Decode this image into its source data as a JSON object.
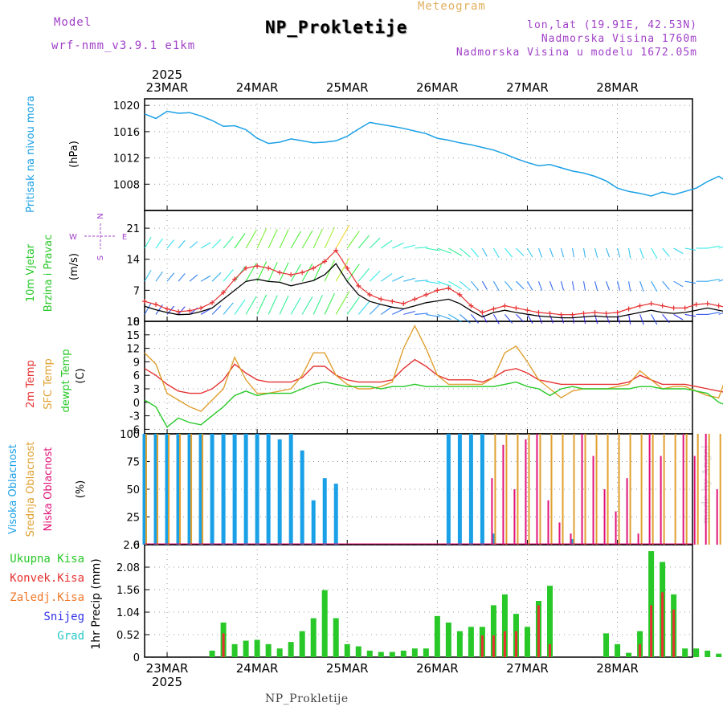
{
  "header": {
    "model_label": "Model",
    "model_name": "wrf-nmm_v3.9.1 e1km",
    "chart_type_label": "Meteogram",
    "station": "NP_Prokletije",
    "lonlat": "lon,lat (19.91E, 42.53N)",
    "altitude": "Nadmorska Visina 1760m",
    "model_altitude": "Nadmorska Visina u modelu 1672.05m",
    "footer_station": "NP_Prokletije",
    "credit": "made by Angel"
  },
  "colors": {
    "pressure": "#1aa0e6",
    "speed": "#000000",
    "gust": "#e63232",
    "t2m": "#e63232",
    "tsfc": "#e0a030",
    "dewpt": "#28c828",
    "high_cloud": "#1aa0e6",
    "mid_cloud": "#e0a030",
    "low_cloud": "#e0147a",
    "total_rain": "#28c828",
    "conv_rain": "#e63232",
    "frozen": "#f07828",
    "snow": "#3232e6",
    "hail": "#28c8c8",
    "purple": "#a040c8"
  },
  "chart_data": [
    {
      "type": "line",
      "panel": "pressure",
      "ylabel_lines": [
        "Pritisak na nivou mora",
        "(hPa)"
      ],
      "ylim": [
        1004,
        1021
      ],
      "yticks": [
        1008,
        1012,
        1016,
        1020
      ],
      "x_hours_start": 0,
      "step_hours": 3,
      "values": [
        1018.7,
        1018.0,
        1019.1,
        1018.8,
        1018.9,
        1018.4,
        1017.7,
        1016.8,
        1016.9,
        1016.3,
        1015.0,
        1014.2,
        1014.4,
        1014.9,
        1014.6,
        1014.3,
        1014.4,
        1014.6,
        1015.3,
        1016.4,
        1017.4,
        1017.1,
        1016.8,
        1016.5,
        1016.1,
        1015.7,
        1015.0,
        1014.7,
        1014.3,
        1014.0,
        1013.6,
        1013.2,
        1012.6,
        1011.9,
        1011.3,
        1010.8,
        1011.0,
        1010.5,
        1010.0,
        1009.7,
        1009.2,
        1008.5,
        1007.4,
        1006.9,
        1006.6,
        1006.2,
        1006.8,
        1006.4,
        1006.9,
        1007.4,
        1008.4,
        1009.2,
        1008.1
      ],
      "grid": true
    },
    {
      "type": "line",
      "panel": "wind",
      "ylabel_lines": [
        "10m Vjetar",
        "Brzina i Pravac",
        "(m/s)"
      ],
      "compass": {
        "n": "N",
        "s": "S",
        "e": "E",
        "w": "W"
      },
      "ylim": [
        0,
        25
      ],
      "yticks": [
        0,
        7,
        14,
        21
      ],
      "x_hours_start": 0,
      "step_hours": 3,
      "series": [
        {
          "name": "speed",
          "values": [
            3.4,
            2.6,
            2.0,
            1.5,
            1.6,
            2.2,
            3.0,
            5.0,
            7.0,
            9.0,
            9.5,
            9.0,
            8.8,
            8.0,
            8.6,
            9.2,
            10.5,
            13.0,
            9.0,
            6.0,
            4.5,
            3.8,
            3.2,
            2.8,
            3.5,
            4.2,
            4.6,
            5.0,
            4.0,
            2.4,
            1.0,
            2.0,
            2.5,
            2.0,
            1.6,
            1.2,
            1.0,
            0.8,
            0.8,
            1.0,
            1.2,
            1.0,
            1.0,
            1.5,
            2.0,
            2.5,
            2.0,
            1.8,
            2.0,
            2.5,
            3.0,
            2.5,
            2.0
          ]
        },
        {
          "name": "gust",
          "values": [
            4.5,
            3.8,
            2.8,
            2.2,
            2.4,
            3.0,
            4.2,
            6.5,
            9.5,
            12.0,
            12.5,
            12.0,
            11.0,
            10.5,
            11.0,
            12.0,
            13.5,
            16.0,
            12.0,
            8.0,
            6.0,
            5.0,
            4.5,
            4.0,
            5.0,
            6.0,
            7.0,
            7.5,
            6.0,
            3.5,
            2.0,
            2.8,
            3.5,
            3.0,
            2.5,
            2.0,
            1.8,
            1.5,
            1.5,
            1.8,
            2.0,
            1.8,
            2.0,
            2.8,
            3.5,
            4.0,
            3.5,
            3.0,
            3.0,
            3.8,
            4.0,
            3.5,
            3.0
          ]
        }
      ],
      "direction_deg": [
        210,
        215,
        220,
        220,
        230,
        240,
        225,
        220,
        215,
        210,
        205,
        205,
        205,
        210,
        210,
        205,
        205,
        210,
        215,
        220,
        225,
        235,
        245,
        255,
        265,
        280,
        290,
        300,
        310,
        320,
        330,
        330,
        320,
        315,
        330,
        340,
        340,
        345,
        350,
        350,
        345,
        340,
        345,
        350,
        340,
        330,
        320,
        300,
        280,
        270,
        260,
        250,
        240
      ],
      "grid": true
    },
    {
      "type": "line",
      "panel": "temperature",
      "ylabel_lines": [
        "2m Temp",
        "SFC Temp",
        "dewpt Temp",
        "(C)"
      ],
      "ylim": [
        -7,
        18
      ],
      "yticks": [
        -6,
        -3,
        0,
        3,
        6,
        9,
        12,
        15,
        18
      ],
      "x_hours_start": 0,
      "step_hours": 3,
      "series": [
        {
          "name": "2m Temp",
          "values": [
            7.5,
            6.0,
            4.0,
            2.5,
            2.0,
            2.0,
            3.0,
            5.0,
            8.5,
            6.5,
            5.0,
            4.5,
            4.5,
            4.5,
            5.5,
            8.0,
            8.0,
            6.0,
            5.0,
            4.5,
            4.5,
            4.5,
            5.0,
            7.5,
            9.5,
            8.0,
            6.0,
            5.0,
            5.0,
            5.0,
            4.5,
            5.5,
            7.0,
            7.5,
            6.5,
            5.0,
            4.5,
            4.0,
            4.0,
            4.0,
            4.0,
            4.0,
            4.0,
            4.5,
            6.0,
            5.0,
            4.0,
            4.0,
            4.0,
            3.5,
            3.0,
            2.5,
            2.0
          ]
        },
        {
          "name": "SFC Temp",
          "values": [
            11.0,
            8.5,
            2.0,
            0.5,
            -1.0,
            -2.0,
            0.5,
            3.0,
            10.0,
            5.0,
            2.0,
            2.0,
            2.5,
            3.0,
            6.0,
            11.0,
            11.0,
            6.0,
            4.0,
            3.0,
            3.0,
            3.5,
            4.5,
            12.0,
            17.0,
            12.0,
            6.0,
            4.0,
            4.0,
            4.0,
            4.0,
            5.5,
            11.0,
            12.5,
            9.0,
            5.0,
            3.0,
            1.0,
            2.5,
            3.0,
            3.0,
            3.0,
            3.5,
            4.0,
            7.0,
            5.0,
            3.0,
            3.5,
            3.5,
            2.5,
            1.5,
            1.0,
            8.0
          ]
        },
        {
          "name": "dewpt Temp",
          "values": [
            0.5,
            -1.0,
            -5.5,
            -3.5,
            -4.5,
            -5.0,
            -3.0,
            -1.0,
            1.5,
            2.5,
            1.5,
            2.0,
            2.0,
            2.0,
            3.0,
            4.0,
            4.5,
            4.0,
            3.5,
            3.5,
            3.5,
            3.0,
            3.5,
            3.5,
            4.0,
            3.5,
            3.5,
            3.5,
            3.5,
            3.5,
            3.5,
            3.5,
            4.0,
            4.5,
            3.5,
            3.0,
            1.5,
            3.0,
            3.5,
            3.0,
            3.0,
            3.0,
            3.0,
            3.0,
            3.5,
            3.5,
            3.0,
            3.0,
            3.0,
            2.5,
            2.0,
            0.0,
            -1.0
          ]
        }
      ],
      "grid": true
    },
    {
      "type": "bar",
      "panel": "cloud",
      "ylabel_lines": [
        "Visoka Oblacnost",
        "Srednja Oblacnost",
        "Niska Oblacnost",
        "(%)"
      ],
      "ylim": [
        0,
        100
      ],
      "yticks": [
        0,
        25,
        50,
        75,
        100
      ],
      "x_hours_start": 0,
      "step_hours": 3,
      "series": [
        {
          "name": "Visoka Oblacnost",
          "values": [
            100,
            100,
            100,
            100,
            100,
            100,
            100,
            100,
            100,
            100,
            100,
            100,
            95,
            100,
            85,
            40,
            60,
            55,
            0,
            0,
            0,
            0,
            0,
            0,
            0,
            0,
            0,
            100,
            100,
            100,
            100,
            10,
            0,
            0,
            0,
            0,
            0,
            0,
            5,
            0,
            0,
            0,
            0,
            0,
            0,
            0,
            0,
            0,
            0,
            0,
            0,
            0,
            0
          ]
        },
        {
          "name": "Srednja Oblacnost",
          "values": [
            100,
            100,
            100,
            100,
            100,
            100,
            0,
            0,
            0,
            0,
            0,
            0,
            0,
            0,
            0,
            0,
            0,
            0,
            0,
            0,
            0,
            0,
            0,
            0,
            0,
            0,
            0,
            0,
            0,
            0,
            0,
            100,
            100,
            100,
            100,
            100,
            100,
            100,
            100,
            100,
            100,
            100,
            100,
            100,
            100,
            100,
            100,
            100,
            100,
            100,
            100,
            100,
            100
          ]
        },
        {
          "name": "Niska Oblacnost",
          "values": [
            0,
            0,
            0,
            0,
            0,
            0,
            0,
            0,
            0,
            0,
            0,
            0,
            0,
            0,
            0,
            0,
            0,
            0,
            0,
            0,
            0,
            0,
            0,
            0,
            0,
            0,
            0,
            0,
            0,
            0,
            0,
            60,
            90,
            50,
            95,
            100,
            40,
            20,
            10,
            100,
            80,
            50,
            30,
            60,
            10,
            100,
            80,
            0,
            100,
            80,
            100,
            50,
            30
          ]
        }
      ],
      "grid": true
    },
    {
      "type": "bar",
      "panel": "precip",
      "ylabel_lines": [
        "1hr Precip (mm)"
      ],
      "legend": [
        "Ukupna Kisa",
        "Konvek.Kisa",
        "Zaledj.Kisa",
        "Snijeg",
        "Grad"
      ],
      "ylim": [
        0,
        2.6
      ],
      "yticks": [
        0,
        0.52,
        1.04,
        1.56,
        2.08,
        2.6
      ],
      "x_hours_start": 0,
      "step_hours": 3,
      "series": [
        {
          "name": "Ukupna Kisa",
          "values": [
            0,
            0,
            0,
            0,
            0,
            0,
            0.15,
            0.8,
            0.3,
            0.38,
            0.4,
            0.3,
            0.2,
            0.35,
            0.6,
            0.9,
            1.55,
            0.9,
            0.3,
            0.25,
            0.15,
            0.12,
            0.12,
            0.15,
            0.2,
            0.2,
            0.95,
            0.8,
            0.6,
            0.7,
            0.7,
            1.2,
            1.45,
            1.0,
            0.7,
            1.3,
            1.65,
            0,
            0,
            0,
            0,
            0.55,
            0.3,
            0.1,
            0.6,
            2.45,
            2.2,
            1.45,
            0.2,
            0.2,
            0.15,
            0.08,
            0.05
          ]
        },
        {
          "name": "Konvek.Kisa",
          "values": [
            0,
            0,
            0,
            0,
            0,
            0,
            0,
            0.55,
            0,
            0,
            0,
            0,
            0,
            0,
            0,
            0,
            0,
            0,
            0,
            0,
            0,
            0,
            0,
            0,
            0,
            0,
            0,
            0,
            0,
            0,
            0.5,
            0.5,
            0.6,
            0.6,
            0,
            1.2,
            0.3,
            0,
            0,
            0,
            0,
            0,
            0,
            0,
            0.3,
            1.2,
            1.5,
            1.1,
            0,
            0,
            0,
            0,
            0
          ]
        },
        {
          "name": "Zaledj.Kisa",
          "values": [
            0,
            0,
            0,
            0,
            0,
            0,
            0,
            0,
            0,
            0,
            0,
            0,
            0,
            0,
            0,
            0,
            0,
            0,
            0,
            0,
            0,
            0,
            0,
            0,
            0,
            0,
            0,
            0,
            0,
            0,
            0,
            0,
            0,
            0,
            0,
            0,
            0,
            0,
            0,
            0,
            0,
            0,
            0,
            0,
            0,
            0,
            0,
            0,
            0,
            0,
            0,
            0,
            0
          ]
        },
        {
          "name": "Snijeg",
          "values": [
            0,
            0,
            0,
            0,
            0,
            0,
            0,
            0,
            0,
            0,
            0,
            0,
            0,
            0,
            0,
            0,
            0,
            0,
            0,
            0,
            0,
            0,
            0,
            0,
            0,
            0,
            0,
            0,
            0,
            0,
            0,
            0,
            0,
            0,
            0,
            0,
            0,
            0,
            0,
            0,
            0,
            0,
            0,
            0,
            0,
            0,
            0,
            0,
            0,
            0,
            0,
            0,
            0
          ]
        },
        {
          "name": "Grad",
          "values": [
            0,
            0,
            0,
            0,
            0,
            0,
            0,
            0,
            0,
            0,
            0,
            0,
            0,
            0,
            0,
            0,
            0,
            0,
            0,
            0,
            0,
            0,
            0,
            0,
            0,
            0,
            0,
            0,
            0,
            0,
            0,
            0,
            0,
            0,
            0,
            0,
            0,
            0,
            0,
            0,
            0,
            0,
            0,
            0,
            0,
            0,
            0,
            0,
            0,
            0,
            0,
            0,
            0.06
          ]
        }
      ],
      "grid": true
    }
  ],
  "x_axis": {
    "year": "2025",
    "date_labels": [
      "23MAR",
      "24MAR",
      "25MAR",
      "26MAR",
      "27MAR",
      "28MAR"
    ],
    "label_hours": [
      6,
      30,
      54,
      78,
      102,
      126
    ],
    "range_hours": [
      0,
      146
    ]
  }
}
